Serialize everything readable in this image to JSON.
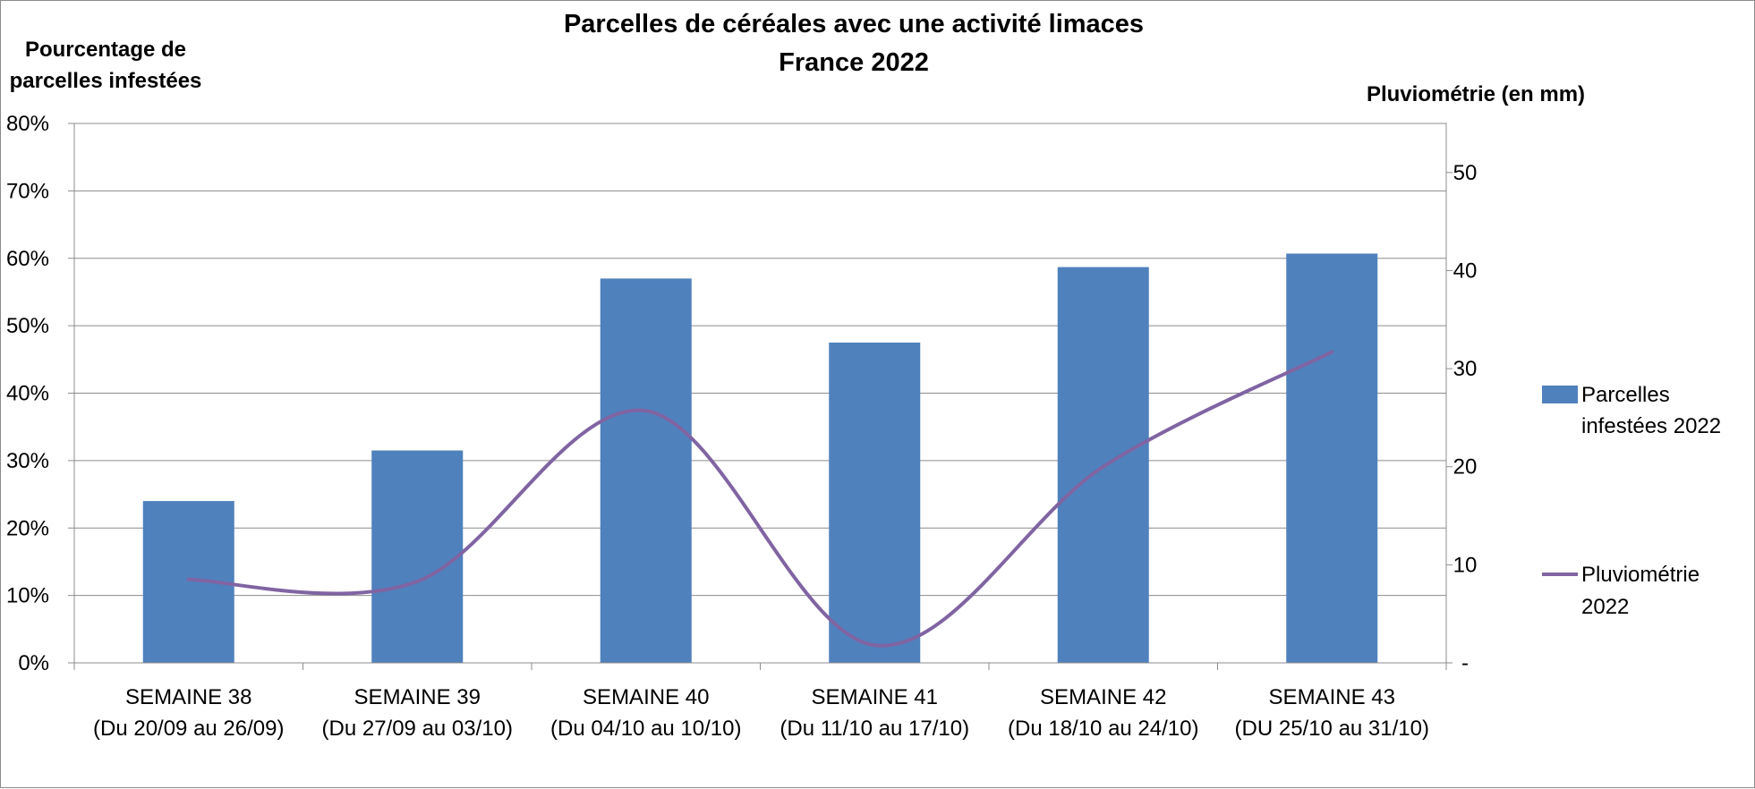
{
  "chart_data": {
    "type": "bar+line",
    "title": [
      "Parcelles de céréales avec une activité limaces",
      "France 2022"
    ],
    "ylabel_left": [
      "Pourcentage de",
      "parcelles infestées"
    ],
    "ylabel_right": "Pluviométrie (en mm)",
    "categories": [
      [
        "SEMAINE 38",
        "(Du 20/09 au 26/09)"
      ],
      [
        "SEMAINE 39",
        "(Du 27/09 au 03/10)"
      ],
      [
        "SEMAINE 40",
        "(Du 04/10 au 10/10)"
      ],
      [
        "SEMAINE 41",
        "(Du 11/10 au 17/10)"
      ],
      [
        "SEMAINE 42",
        "(Du 18/10 au 24/10)"
      ],
      [
        "SEMAINE 43",
        "(DU 25/10 au 31/10)"
      ]
    ],
    "y_left": {
      "ylim": [
        0,
        0.8
      ],
      "ticks": [
        "0%",
        "10%",
        "20%",
        "30%",
        "40%",
        "50%",
        "60%",
        "70%",
        "80%"
      ]
    },
    "y_right": {
      "ylim": [
        0,
        55
      ],
      "ticks": [
        "-",
        "10",
        "20",
        "30",
        "40",
        "50"
      ]
    },
    "grid": true,
    "legend_position": "right",
    "series": [
      {
        "name": [
          "Parcelles",
          "infestées 2022"
        ],
        "type": "bar",
        "axis": "left",
        "color": "#4f81bd",
        "values": [
          0.24,
          0.315,
          0.57,
          0.475,
          0.587,
          0.607
        ]
      },
      {
        "name": [
          "Pluviométrie",
          "2022"
        ],
        "type": "line",
        "axis": "right",
        "color": "#8064a2",
        "values": [
          8.5,
          8.3,
          25.7,
          1.8,
          20.0,
          31.7
        ]
      }
    ]
  }
}
